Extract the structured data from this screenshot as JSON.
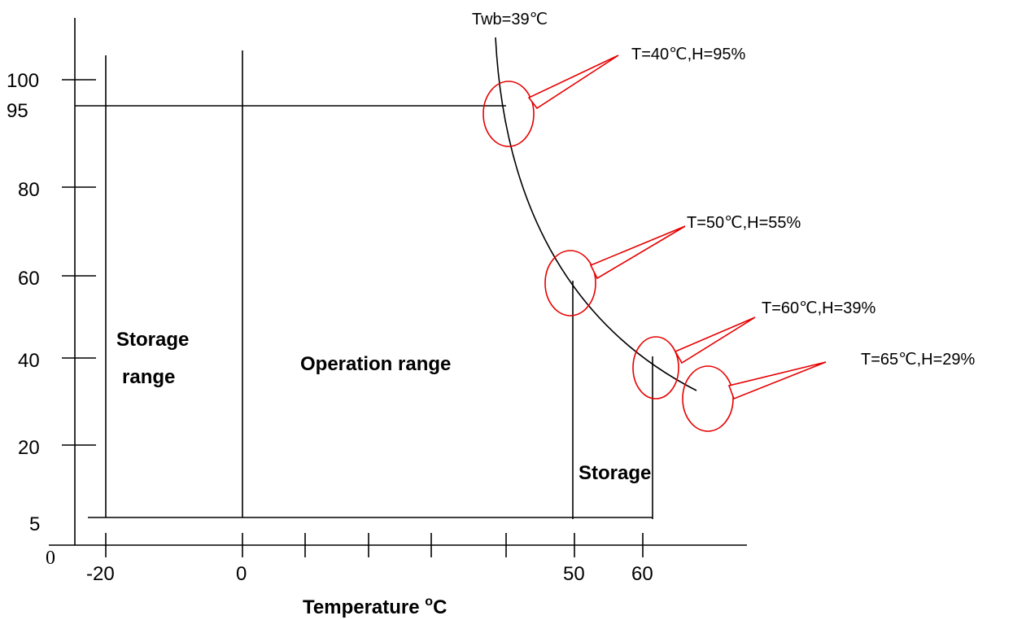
{
  "axes": {
    "x_label_text": "Temperature ",
    "x_label_degree": "o",
    "x_label_unit": "C",
    "origin_label": "0",
    "x_ticks": [
      "-20",
      "0",
      "50",
      "60"
    ],
    "y_ticks": [
      "100",
      "95",
      "80",
      "60",
      "40",
      "20",
      "5"
    ]
  },
  "regions": {
    "storage_left_line1": "Storage",
    "storage_left_line2": "range",
    "operation": "Operation range",
    "storage_right": "Storage"
  },
  "curve_label": "Twb=39℃",
  "annotations": [
    "T=40℃,H=95%",
    "T=50℃,H=55%",
    "T=60℃,H=39%",
    "T=65℃,H=29%"
  ],
  "colors": {
    "lines": "#000000",
    "callouts": "#e60000"
  }
}
